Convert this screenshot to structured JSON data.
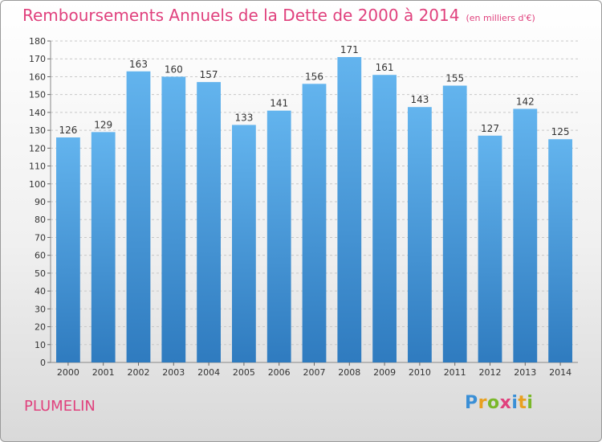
{
  "title": "Remboursements Annuels de la Dette de 2000 à 2014",
  "unit": "(en milliers d'€)",
  "commune": "PLUMELIN",
  "logo": {
    "text": "Proxiti",
    "colors": [
      "#3a8fd6",
      "#e8a020",
      "#7ab82a",
      "#e0417d",
      "#3a8fd6",
      "#e8a020",
      "#7ab82a"
    ]
  },
  "colors": {
    "title": "#e0417d",
    "bar_top": "#63b4ee",
    "bar_bottom": "#2f7bbf"
  },
  "chart_data": {
    "type": "bar",
    "title": "Remboursements Annuels de la Dette de 2000 à 2014",
    "xlabel": "",
    "ylabel": "",
    "categories": [
      "2000",
      "2001",
      "2002",
      "2003",
      "2004",
      "2005",
      "2006",
      "2007",
      "2008",
      "2009",
      "2010",
      "2011",
      "2012",
      "2013",
      "2014"
    ],
    "values": [
      126,
      129,
      163,
      160,
      157,
      133,
      141,
      156,
      171,
      161,
      143,
      155,
      127,
      142,
      125
    ],
    "ylim": [
      0,
      180
    ],
    "ytick_step": 10,
    "grid": true
  }
}
